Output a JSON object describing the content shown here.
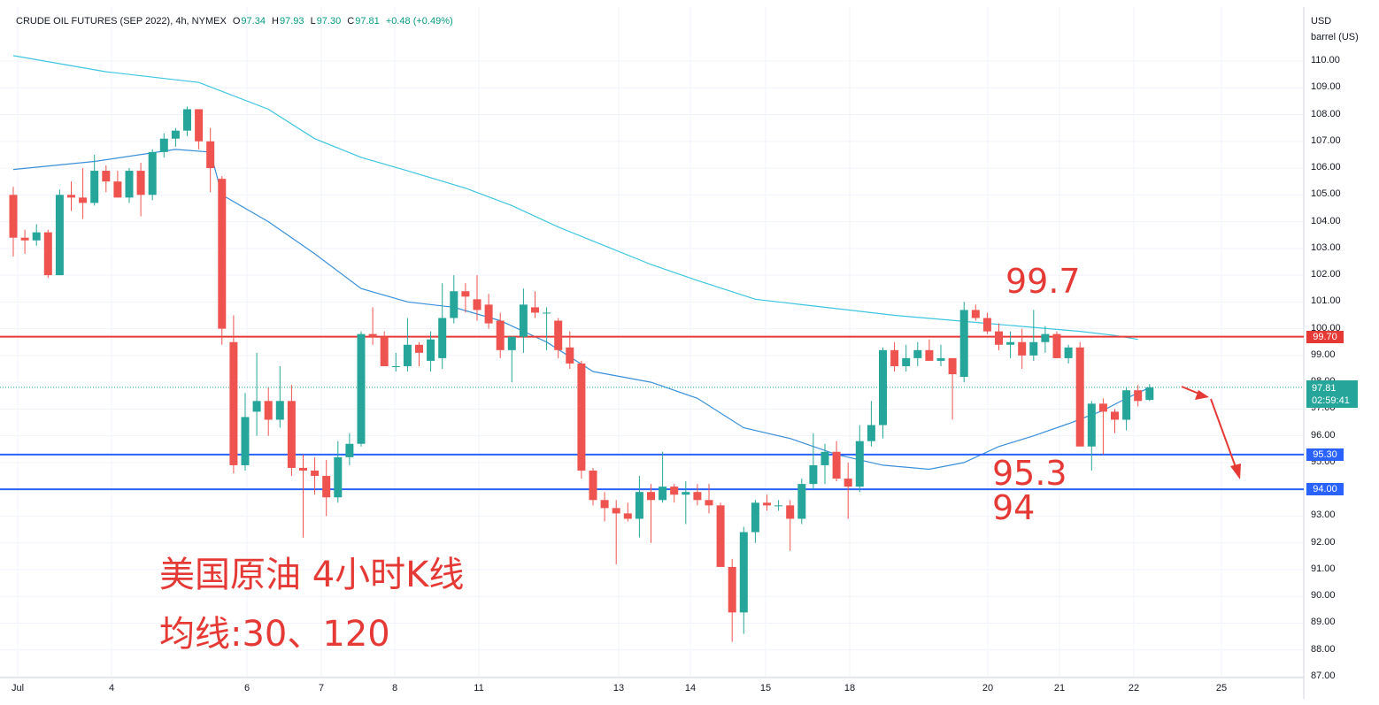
{
  "header": {
    "symbol": "CRUDE OIL FUTURES (SEP 2022), 4h, NYMEX",
    "open_label": "O",
    "open": "97.34",
    "high_label": "H",
    "high": "97.93",
    "low_label": "L",
    "low": "97.30",
    "close_label": "C",
    "close": "97.81",
    "change": "+0.48 (+0.49%)"
  },
  "axis": {
    "unit_line1": "USD",
    "unit_line2": "barrel (US)",
    "y_ticks": [
      "110.00",
      "109.00",
      "108.00",
      "107.00",
      "106.00",
      "105.00",
      "104.00",
      "103.00",
      "102.00",
      "101.00",
      "100.00",
      "99.00",
      "98.00",
      "97.00",
      "96.00",
      "95.00",
      "94.00",
      "93.00",
      "92.00",
      "91.00",
      "90.00",
      "89.00",
      "88.00",
      "87.00"
    ],
    "x_ticks": [
      "Jul",
      "4",
      "6",
      "7",
      "8",
      "11",
      "13",
      "14",
      "15",
      "18",
      "20",
      "21",
      "22",
      "25"
    ]
  },
  "levels": {
    "resistance": "99.70",
    "support1": "95.30",
    "support2": "94.00",
    "current_price": "97.81",
    "countdown": "02:59:41"
  },
  "annotations": {
    "label_997": "99.7",
    "label_953": "95.3",
    "label_94": "94",
    "title_cn": "美国原油 4小时K线",
    "ma_cn": "均线:30、120"
  },
  "colors": {
    "up": "#26a69a",
    "down": "#ef5350",
    "ma30": "#3a8fd9",
    "ma120": "#3ec5e0",
    "resistance_line": "#e53935",
    "support_line": "#2962ff",
    "annotation": "#e53935"
  },
  "chart_data": {
    "type": "candlestick",
    "y_range": [
      87,
      110.5
    ],
    "candles": [
      {
        "o": 105.0,
        "h": 105.3,
        "l": 102.7,
        "c": 103.4
      },
      {
        "o": 103.4,
        "h": 103.7,
        "l": 102.8,
        "c": 103.3
      },
      {
        "o": 103.3,
        "h": 103.9,
        "l": 103.1,
        "c": 103.6
      },
      {
        "o": 103.6,
        "h": 103.7,
        "l": 101.9,
        "c": 102.0
      },
      {
        "o": 102.0,
        "h": 105.2,
        "l": 102.0,
        "c": 105.0
      },
      {
        "o": 105.0,
        "h": 105.5,
        "l": 104.4,
        "c": 104.9
      },
      {
        "o": 104.9,
        "h": 106.0,
        "l": 104.1,
        "c": 104.7
      },
      {
        "o": 104.7,
        "h": 106.5,
        "l": 104.6,
        "c": 105.9
      },
      {
        "o": 105.9,
        "h": 106.1,
        "l": 105.1,
        "c": 105.5
      },
      {
        "o": 105.5,
        "h": 105.9,
        "l": 104.9,
        "c": 104.9
      },
      {
        "o": 104.9,
        "h": 106.0,
        "l": 104.7,
        "c": 105.9
      },
      {
        "o": 105.9,
        "h": 106.2,
        "l": 104.2,
        "c": 105.0
      },
      {
        "o": 105.0,
        "h": 106.7,
        "l": 104.8,
        "c": 106.6
      },
      {
        "o": 106.6,
        "h": 107.3,
        "l": 106.4,
        "c": 107.1
      },
      {
        "o": 107.1,
        "h": 107.5,
        "l": 106.8,
        "c": 107.4
      },
      {
        "o": 107.4,
        "h": 108.3,
        "l": 107.2,
        "c": 108.2
      },
      {
        "o": 108.2,
        "h": 108.2,
        "l": 106.7,
        "c": 107.0
      },
      {
        "o": 107.0,
        "h": 107.5,
        "l": 105.1,
        "c": 106.0
      },
      {
        "o": 105.6,
        "h": 105.7,
        "l": 99.4,
        "c": 100.0
      },
      {
        "o": 99.5,
        "h": 100.5,
        "l": 94.6,
        "c": 94.9
      },
      {
        "o": 94.9,
        "h": 97.6,
        "l": 94.7,
        "c": 96.7
      },
      {
        "o": 96.9,
        "h": 99.1,
        "l": 96.0,
        "c": 97.3
      },
      {
        "o": 97.3,
        "h": 97.8,
        "l": 96.0,
        "c": 96.6
      },
      {
        "o": 96.6,
        "h": 98.6,
        "l": 96.3,
        "c": 97.3
      },
      {
        "o": 97.3,
        "h": 97.9,
        "l": 94.5,
        "c": 94.8
      },
      {
        "o": 94.8,
        "h": 95.3,
        "l": 92.2,
        "c": 94.7
      },
      {
        "o": 94.7,
        "h": 95.2,
        "l": 93.8,
        "c": 94.5
      },
      {
        "o": 94.5,
        "h": 95.1,
        "l": 93.0,
        "c": 93.7
      },
      {
        "o": 93.7,
        "h": 95.8,
        "l": 93.5,
        "c": 95.2
      },
      {
        "o": 95.2,
        "h": 96.1,
        "l": 94.9,
        "c": 95.7
      },
      {
        "o": 95.7,
        "h": 99.9,
        "l": 95.6,
        "c": 99.8
      },
      {
        "o": 99.8,
        "h": 100.8,
        "l": 99.4,
        "c": 99.7
      },
      {
        "o": 99.7,
        "h": 99.9,
        "l": 98.8,
        "c": 98.6
      },
      {
        "o": 98.6,
        "h": 99.1,
        "l": 98.4,
        "c": 98.6
      },
      {
        "o": 98.6,
        "h": 100.4,
        "l": 98.4,
        "c": 99.4
      },
      {
        "o": 99.4,
        "h": 99.5,
        "l": 98.6,
        "c": 99.1
      },
      {
        "o": 98.8,
        "h": 99.9,
        "l": 98.4,
        "c": 99.6
      },
      {
        "o": 98.9,
        "h": 101.7,
        "l": 98.5,
        "c": 100.4
      },
      {
        "o": 100.4,
        "h": 102.0,
        "l": 100.2,
        "c": 101.4
      },
      {
        "o": 101.4,
        "h": 101.7,
        "l": 100.6,
        "c": 101.2
      },
      {
        "o": 101.1,
        "h": 102.0,
        "l": 100.3,
        "c": 100.7
      },
      {
        "o": 100.9,
        "h": 101.3,
        "l": 100.0,
        "c": 100.2
      },
      {
        "o": 100.3,
        "h": 100.6,
        "l": 98.9,
        "c": 99.2
      },
      {
        "o": 99.2,
        "h": 99.7,
        "l": 98.0,
        "c": 99.7
      },
      {
        "o": 99.7,
        "h": 101.5,
        "l": 99.1,
        "c": 100.9
      },
      {
        "o": 100.8,
        "h": 101.4,
        "l": 100.4,
        "c": 100.6
      },
      {
        "o": 100.6,
        "h": 100.8,
        "l": 99.2,
        "c": 100.6
      },
      {
        "o": 100.3,
        "h": 100.4,
        "l": 98.9,
        "c": 99.2
      },
      {
        "o": 99.3,
        "h": 99.9,
        "l": 98.5,
        "c": 98.7
      },
      {
        "o": 98.7,
        "h": 98.8,
        "l": 94.4,
        "c": 94.7
      },
      {
        "o": 94.7,
        "h": 94.8,
        "l": 93.4,
        "c": 93.6
      },
      {
        "o": 93.6,
        "h": 93.9,
        "l": 92.8,
        "c": 93.3
      },
      {
        "o": 93.3,
        "h": 93.6,
        "l": 91.2,
        "c": 93.1
      },
      {
        "o": 93.1,
        "h": 93.5,
        "l": 92.8,
        "c": 92.9
      },
      {
        "o": 92.9,
        "h": 94.5,
        "l": 92.2,
        "c": 93.9
      },
      {
        "o": 93.9,
        "h": 94.2,
        "l": 92.0,
        "c": 93.6
      },
      {
        "o": 93.6,
        "h": 95.4,
        "l": 93.5,
        "c": 94.1
      },
      {
        "o": 94.1,
        "h": 94.2,
        "l": 93.5,
        "c": 93.8
      },
      {
        "o": 93.8,
        "h": 94.3,
        "l": 92.7,
        "c": 93.9
      },
      {
        "o": 93.9,
        "h": 94.2,
        "l": 93.4,
        "c": 93.6
      },
      {
        "o": 93.6,
        "h": 94.2,
        "l": 93.1,
        "c": 93.4
      },
      {
        "o": 93.4,
        "h": 93.5,
        "l": 91.1,
        "c": 91.1
      },
      {
        "o": 91.1,
        "h": 91.4,
        "l": 88.3,
        "c": 89.4
      },
      {
        "o": 89.4,
        "h": 92.6,
        "l": 88.6,
        "c": 92.4
      },
      {
        "o": 92.4,
        "h": 93.6,
        "l": 92.0,
        "c": 93.5
      },
      {
        "o": 93.5,
        "h": 93.8,
        "l": 93.2,
        "c": 93.4
      },
      {
        "o": 93.4,
        "h": 93.6,
        "l": 93.2,
        "c": 93.4
      },
      {
        "o": 93.4,
        "h": 93.6,
        "l": 91.7,
        "c": 92.9
      },
      {
        "o": 92.9,
        "h": 94.4,
        "l": 92.7,
        "c": 94.2
      },
      {
        "o": 94.2,
        "h": 96.1,
        "l": 94.0,
        "c": 94.9
      },
      {
        "o": 94.9,
        "h": 95.7,
        "l": 94.2,
        "c": 95.4
      },
      {
        "o": 95.4,
        "h": 95.8,
        "l": 94.3,
        "c": 94.4
      },
      {
        "o": 94.4,
        "h": 95.0,
        "l": 92.9,
        "c": 94.1
      },
      {
        "o": 94.1,
        "h": 96.4,
        "l": 93.9,
        "c": 95.8
      },
      {
        "o": 95.8,
        "h": 97.3,
        "l": 95.6,
        "c": 96.4
      },
      {
        "o": 96.4,
        "h": 99.3,
        "l": 95.9,
        "c": 99.2
      },
      {
        "o": 99.2,
        "h": 99.5,
        "l": 98.4,
        "c": 98.6
      },
      {
        "o": 98.6,
        "h": 99.4,
        "l": 98.4,
        "c": 98.9
      },
      {
        "o": 98.9,
        "h": 99.5,
        "l": 98.6,
        "c": 99.2
      },
      {
        "o": 99.2,
        "h": 99.6,
        "l": 98.8,
        "c": 98.8
      },
      {
        "o": 98.8,
        "h": 99.4,
        "l": 98.6,
        "c": 98.9
      },
      {
        "o": 98.9,
        "h": 98.9,
        "l": 96.6,
        "c": 98.3
      },
      {
        "o": 98.2,
        "h": 101.0,
        "l": 98.0,
        "c": 100.7
      },
      {
        "o": 100.7,
        "h": 100.9,
        "l": 100.3,
        "c": 100.4
      },
      {
        "o": 100.4,
        "h": 100.6,
        "l": 99.8,
        "c": 99.9
      },
      {
        "o": 99.9,
        "h": 100.2,
        "l": 99.2,
        "c": 99.4
      },
      {
        "o": 99.4,
        "h": 99.9,
        "l": 98.9,
        "c": 99.5
      },
      {
        "o": 99.5,
        "h": 100.0,
        "l": 98.5,
        "c": 99.0
      },
      {
        "o": 99.0,
        "h": 100.7,
        "l": 98.8,
        "c": 99.5
      },
      {
        "o": 99.5,
        "h": 100.1,
        "l": 99.1,
        "c": 99.8
      },
      {
        "o": 99.8,
        "h": 99.9,
        "l": 98.9,
        "c": 98.9
      },
      {
        "o": 98.9,
        "h": 99.4,
        "l": 98.7,
        "c": 99.3
      },
      {
        "o": 99.3,
        "h": 99.5,
        "l": 95.7,
        "c": 95.6
      },
      {
        "o": 95.6,
        "h": 97.3,
        "l": 94.7,
        "c": 97.2
      },
      {
        "o": 97.2,
        "h": 97.4,
        "l": 95.3,
        "c": 96.9
      },
      {
        "o": 96.9,
        "h": 97.0,
        "l": 96.1,
        "c": 96.6
      },
      {
        "o": 96.6,
        "h": 97.8,
        "l": 96.2,
        "c": 97.7
      },
      {
        "o": 97.7,
        "h": 97.9,
        "l": 97.1,
        "c": 97.3
      },
      {
        "o": 97.34,
        "h": 97.93,
        "l": 97.3,
        "c": 97.81
      }
    ],
    "ma30": [
      [
        0,
        105.95
      ],
      [
        7,
        106.25
      ],
      [
        14,
        106.7
      ],
      [
        17,
        106.6
      ],
      [
        18,
        105.0
      ],
      [
        22,
        104.0
      ],
      [
        26,
        102.8
      ],
      [
        30,
        101.5
      ],
      [
        34,
        101.0
      ],
      [
        38,
        100.8
      ],
      [
        42,
        100.3
      ],
      [
        46,
        99.5
      ],
      [
        50,
        98.4
      ],
      [
        55,
        98.0
      ],
      [
        59,
        97.4
      ],
      [
        63,
        96.3
      ],
      [
        67,
        95.9
      ],
      [
        71,
        95.3
      ],
      [
        75,
        94.9
      ],
      [
        79,
        94.75
      ],
      [
        82,
        95.0
      ],
      [
        85,
        95.6
      ],
      [
        88,
        96.0
      ],
      [
        91,
        96.45
      ],
      [
        94,
        96.95
      ],
      [
        96,
        97.4
      ],
      [
        98,
        97.8
      ]
    ],
    "ma120": [
      [
        0,
        110.2
      ],
      [
        8,
        109.6
      ],
      [
        16,
        109.2
      ],
      [
        22,
        108.2
      ],
      [
        26,
        107.1
      ],
      [
        30,
        106.4
      ],
      [
        34,
        105.9
      ],
      [
        39,
        105.25
      ],
      [
        43,
        104.6
      ],
      [
        47,
        103.8
      ],
      [
        51,
        103.1
      ],
      [
        55,
        102.4
      ],
      [
        59,
        101.8
      ],
      [
        64,
        101.1
      ],
      [
        68,
        100.9
      ],
      [
        72,
        100.7
      ],
      [
        76,
        100.5
      ],
      [
        80,
        100.35
      ],
      [
        84,
        100.2
      ],
      [
        88,
        100.05
      ],
      [
        92,
        99.9
      ],
      [
        95,
        99.75
      ],
      [
        97,
        99.6
      ]
    ]
  }
}
